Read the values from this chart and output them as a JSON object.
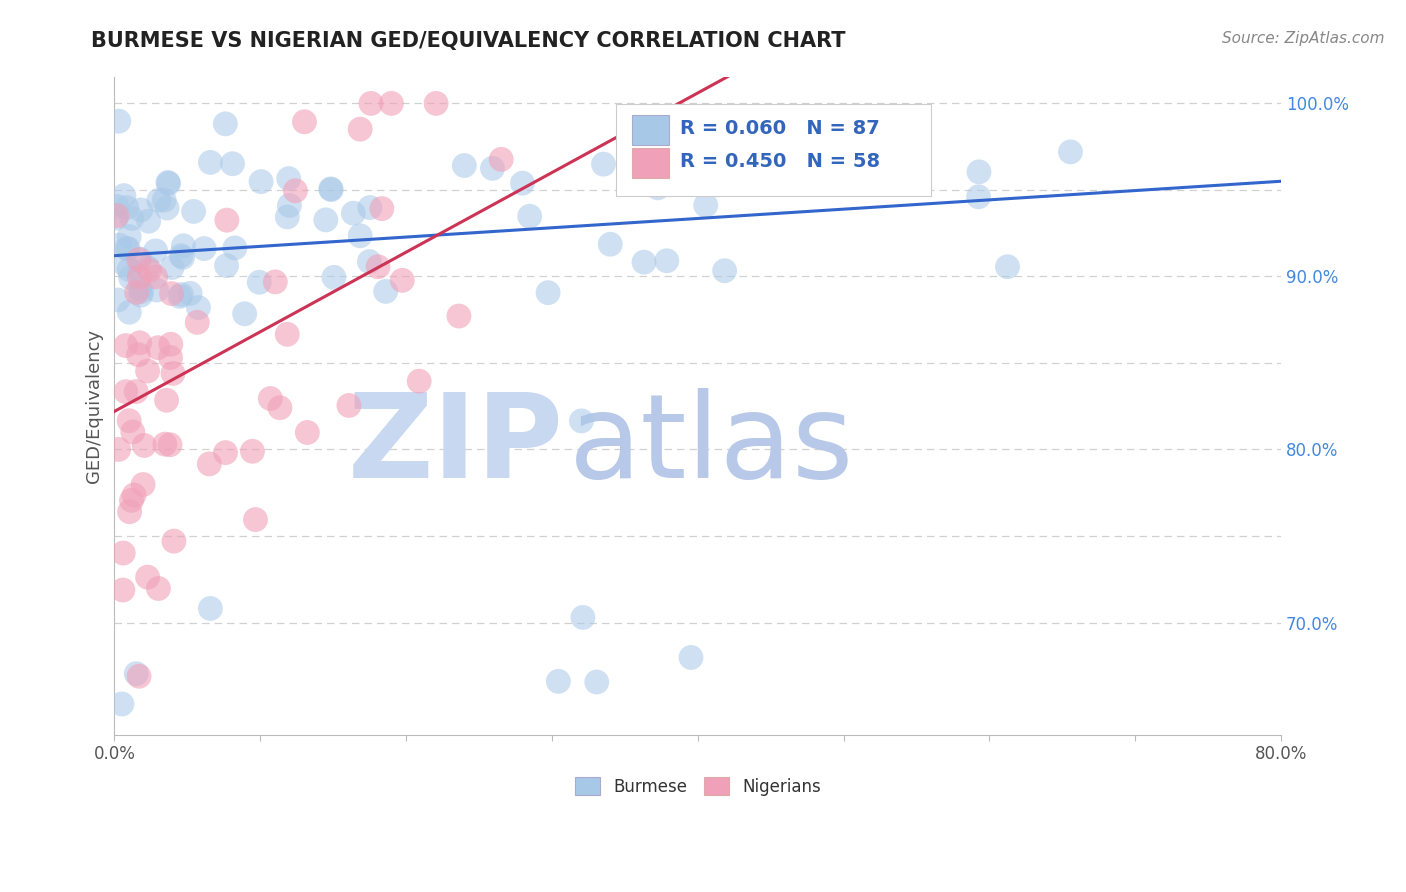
{
  "title": "BURMESE VS NIGERIAN GED/EQUIVALENCY CORRELATION CHART",
  "source_text": "Source: ZipAtlas.com",
  "ylabel": "GED/Equivalency",
  "xlim": [
    0.0,
    0.8
  ],
  "ylim": [
    0.635,
    1.015
  ],
  "burmese_color": "#a8c8e8",
  "nigerian_color": "#f0a0b8",
  "burmese_line_color": "#3366cc",
  "nigerian_line_color": "#cc3355",
  "r_burmese": 0.06,
  "n_burmese": 87,
  "r_nigerian": 0.45,
  "n_nigerian": 58,
  "grid_color": "#cccccc",
  "watermark": "ZIPatlas",
  "watermark_color_zip": "#c8d8f0",
  "watermark_color_atlas": "#b8c8e8",
  "legend_border_color": "#cccccc",
  "legend_text_color": "#3366bb",
  "ytick_color": "#4488dd",
  "xtick_color": "#555555",
  "title_color": "#222222",
  "source_color": "#888888",
  "ylabel_color": "#555555",
  "burmese_seed": 42,
  "nigerian_seed": 123,
  "burmese_line_x0": 0.0,
  "burmese_line_y0": 0.912,
  "burmese_line_x1": 0.8,
  "burmese_line_y1": 0.955,
  "nigerian_line_x0": 0.0,
  "nigerian_line_y0": 0.822,
  "nigerian_line_x1": 0.3,
  "nigerian_line_y1": 0.96
}
